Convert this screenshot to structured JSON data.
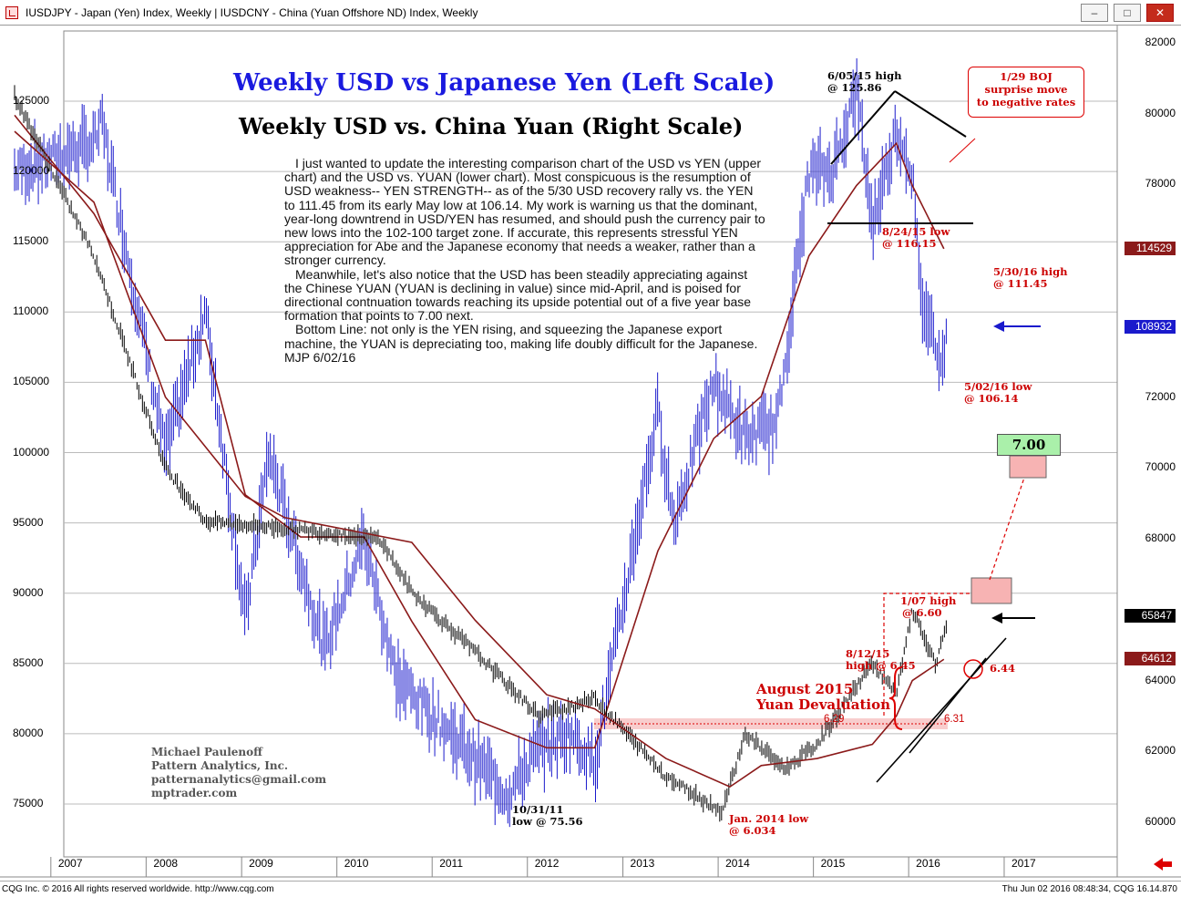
{
  "window": {
    "title": "IUSDJPY - Japan (Yen) Index, Weekly   |   IUSDCNY - China (Yuan Offshore ND) Index, Weekly",
    "buttons": [
      "minimize",
      "maximize",
      "close"
    ]
  },
  "footer": {
    "left": "CQG Inc. © 2016 All rights reserved worldwide. http://www.cqg.com",
    "right": "Thu Jun 02 2016 08:48:34, CQG 16.14.870"
  },
  "headline": {
    "title1": "Weekly USD vs Japanese Yen (Left Scale)",
    "title2": "Weekly USD vs. China Yuan (Right Scale)"
  },
  "commentary": {
    "p1": "I just wanted to update the interesting comparison chart of the USD vs YEN (upper chart) and the USD vs. YUAN (lower chart). Most conspicuous is the resumption of USD weakness-- YEN STRENGTH-- as of the 5/30 USD recovery rally vs. the YEN to 111.45 from its early May low at 106.14. My work is warning us that the dominant, year-long downtrend in USD/YEN has resumed, and should push the currency pair to new lows into the 102-100 target zone. If accurate, this represents stressful YEN appreciation for Abe and the Japanese economy that needs a weaker, rather than a stronger currency.",
    "p2": "Meanwhile, let's also notice that the USD has been steadily appreciating against the Chinese YUAN (YUAN is declining in value) since mid-April, and is poised for directional contnuation towards reaching its upside potential out of a five year base formation that points to 7.00 next.",
    "p3": "Bottom Line: not only is the YEN rising, and squeezing the Japanese export machine, the YUAN is depreciating too, making life doubly difficult for the Japanese. MJP 6/02/16"
  },
  "credit": {
    "line1": "Michael Paulenoff",
    "line2": "Pattern Analytics, Inc.",
    "line3": "patternanalytics@gmail.com",
    "line4": "mptrader.com"
  },
  "annotations": {
    "high_2015_a": "6/05/15 high",
    "high_2015_b": "@ 125.86",
    "boj_1": "1/29 BOJ",
    "boj_2": "surprise move",
    "boj_3": "to negative rates",
    "low_2015_a": "8/24/15 low",
    "low_2015_b": "@ 116.15",
    "high_2016_a": "5/30/16 high",
    "high_2016_b": "@ 111.45",
    "low_2016_a": "5/02/16 low",
    "low_2016_b": "@ 106.14",
    "target": "7.00",
    "high_0107_a": "1/07 high",
    "high_0107_b": "@ 6.60",
    "high_0812_a": "8/12/15",
    "high_0812_b": "high @ 6.45",
    "deval_1": "August 2015",
    "deval_2": "Yuan Devaluation",
    "lvl_629": "6.29",
    "lvl_631": "6.31",
    "lvl_644": "6.44",
    "low_2011_a": "10/31/11",
    "low_2011_b": "low @ 75.56",
    "low_2014_a": "Jan. 2014 low",
    "low_2014_b": "@ 6.034"
  },
  "price_tags": {
    "jpy_ma": "114529",
    "jpy_last": "108932",
    "cny_last": "65847",
    "cny_ma": "64612"
  },
  "colors": {
    "yen_bars": "#1a1acc",
    "yuan_bars": "#000000",
    "moving_average": "#8b1a1a",
    "annotation_red": "#cc0000",
    "target_green": "#aaf0aa",
    "target_pink": "#f7b3b3"
  },
  "chart_data": [
    {
      "type": "line",
      "title": "Weekly USD vs Japanese Yen (Left Scale)",
      "series": [
        {
          "name": "USDJPY",
          "x": [
            "2006-08",
            "2007-06",
            "2007-07",
            "2008-03",
            "2008-08",
            "2009-01",
            "2009-04",
            "2009-08",
            "2009-11",
            "2010-04",
            "2010-08",
            "2011-03",
            "2011-08",
            "2011-10",
            "2012-02",
            "2012-06",
            "2012-09",
            "2013-05",
            "2013-07",
            "2013-12",
            "2014-04",
            "2014-08",
            "2014-12",
            "2015-03",
            "2015-06",
            "2015-08",
            "2015-11",
            "2016-01",
            "2016-02",
            "2016-04",
            "2016-05",
            "2016-05-30"
          ],
          "values": [
            120,
            122,
            123.5,
            100,
            110,
            88,
            100,
            92,
            86,
            94,
            84,
            80,
            77,
            75.6,
            79,
            80,
            78,
            103,
            95,
            105,
            101,
            102,
            120,
            120,
            125.9,
            116.2,
            123,
            120,
            111,
            108,
            106.1,
            111.4
          ]
        },
        {
          "name": "USDJPY moving average",
          "x": [
            "2006-08",
            "2007-06",
            "2008-03",
            "2008-08",
            "2009-01",
            "2009-08",
            "2010-04",
            "2010-10",
            "2011-06",
            "2012-03",
            "2012-09",
            "2013-05",
            "2013-12",
            "2014-06",
            "2014-12",
            "2015-06",
            "2015-11",
            "2016-01",
            "2016-05"
          ],
          "values": [
            124,
            117,
            108,
            108,
            97,
            94,
            94,
            88,
            81,
            79,
            79,
            93,
            101,
            104,
            114,
            119,
            122,
            119,
            114.5
          ]
        }
      ],
      "ylabel": "",
      "ylim": [
        72000,
        128500
      ],
      "yticks": [
        125000,
        120000,
        115000,
        110000,
        105000,
        100000,
        95000,
        90000,
        85000,
        80000,
        75000
      ],
      "ytick_labels": [
        "125000",
        "120000",
        "115000",
        "110000",
        "105000",
        "100000",
        "95000",
        "90000",
        "85000",
        "80000",
        "75000"
      ]
    },
    {
      "type": "line",
      "title": "Weekly USD vs. China Yuan (Right Scale)",
      "series": [
        {
          "name": "USDCNY",
          "x": [
            "2006-08",
            "2007-06",
            "2008-03",
            "2008-08",
            "2009-06",
            "2010-06",
            "2010-10",
            "2011-06",
            "2012-02",
            "2012-09",
            "2013-06",
            "2014-01",
            "2014-04",
            "2014-09",
            "2015-01",
            "2015-08",
            "2015-11",
            "2016-01",
            "2016-04",
            "2016-05-30"
          ],
          "values": [
            8.05,
            7.6,
            7.0,
            6.85,
            6.83,
            6.8,
            6.65,
            6.48,
            6.3,
            6.35,
            6.13,
            6.03,
            6.25,
            6.15,
            6.22,
            6.45,
            6.36,
            6.6,
            6.44,
            6.58
          ]
        },
        {
          "name": "USDCNY moving average",
          "x": [
            "2006-08",
            "2007-06",
            "2008-03",
            "2009-01",
            "2009-06",
            "2010-10",
            "2011-06",
            "2012-03",
            "2012-09",
            "2013-06",
            "2014-02",
            "2014-06",
            "2015-01",
            "2015-08",
            "2015-11",
            "2016-01",
            "2016-05"
          ],
          "values": [
            7.95,
            7.75,
            7.2,
            6.92,
            6.86,
            6.79,
            6.57,
            6.36,
            6.32,
            6.18,
            6.1,
            6.16,
            6.18,
            6.22,
            6.3,
            6.4,
            6.46
          ]
        }
      ],
      "ylabel": "",
      "ylim": [
        59500,
        83200
      ],
      "yticks": [
        82000,
        80000,
        78000,
        76000,
        74000,
        72000,
        70000,
        68000,
        66000,
        64000,
        62000,
        60000
      ],
      "ytick_labels": [
        "82000",
        "80000",
        "78000",
        "",
        "",
        "72000",
        "70000",
        "68000",
        "",
        "64000",
        "62000",
        "60000"
      ]
    }
  ],
  "xaxis": {
    "labels": [
      "2007",
      "2008",
      "2009",
      "2010",
      "2011",
      "2012",
      "2013",
      "2014",
      "2015",
      "2016",
      "2017"
    ]
  }
}
